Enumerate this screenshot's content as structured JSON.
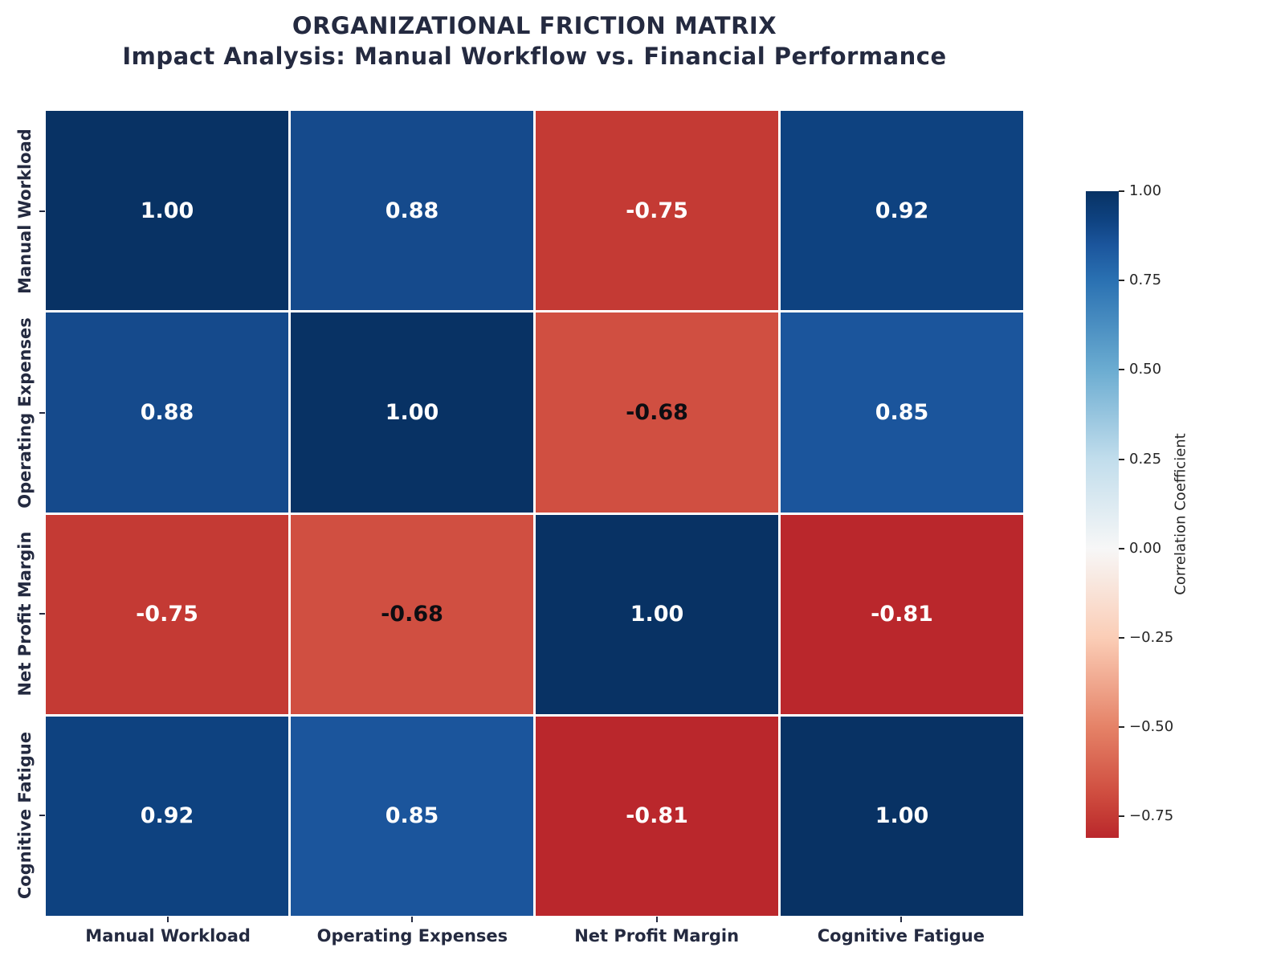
{
  "chart_data": {
    "type": "heatmap",
    "title": "ORGANIZATIONAL FRICTION MATRIX",
    "subtitle": "Impact Analysis: Manual Workflow vs. Financial Performance",
    "categories": [
      "Manual Workload",
      "Operating Expenses",
      "Net Profit Margin",
      "Cognitive Fatigue"
    ],
    "matrix": [
      [
        1.0,
        0.88,
        -0.75,
        0.92
      ],
      [
        0.88,
        1.0,
        -0.68,
        0.85
      ],
      [
        -0.75,
        -0.68,
        1.0,
        -0.81
      ],
      [
        0.92,
        0.85,
        -0.81,
        1.0
      ]
    ],
    "colormap": "RdBu",
    "vmin": -0.81,
    "vmax": 1.0,
    "center": 0,
    "annotation_format": "two-decimal",
    "grid_line_color": "#ffffff",
    "cell_colors": {
      "1.00": "#083264",
      "0.92": "#0e4280",
      "0.88": "#154a8c",
      "0.85": "#1b559c",
      "-0.68": "#d04f41",
      "-0.75": "#c43a34",
      "-0.81": "#ba272c"
    },
    "dark_text_values": [
      "-0.68"
    ],
    "dark_text_color": "#0d0d12",
    "light_text_color": "#ffffff",
    "axis_label_color": "#242a40",
    "colorbar": {
      "label": "Correlation Coefficient",
      "tick_label_color": "#262626",
      "ticks": [
        {
          "label": "1.00",
          "value": 1.0
        },
        {
          "label": "0.75",
          "value": 0.75
        },
        {
          "label": "0.50",
          "value": 0.5
        },
        {
          "label": "0.25",
          "value": 0.25
        },
        {
          "label": "0.00",
          "value": 0.0
        },
        {
          "label": "−0.25",
          "value": -0.25
        },
        {
          "label": "−0.50",
          "value": -0.5
        },
        {
          "label": "−0.75",
          "value": -0.75
        }
      ],
      "gradient_stops": [
        {
          "p": 0,
          "c": "#ba272c"
        },
        {
          "p": 3.3,
          "c": "#c43a34"
        },
        {
          "p": 7.2,
          "c": "#d04f41"
        },
        {
          "p": 17.1,
          "c": "#e58267"
        },
        {
          "p": 30.9,
          "c": "#fbcdb6"
        },
        {
          "p": 44.7,
          "c": "#f7f7f7"
        },
        {
          "p": 58.6,
          "c": "#c1ddec"
        },
        {
          "p": 72.4,
          "c": "#6bacd1"
        },
        {
          "p": 86.2,
          "c": "#2a71b2"
        },
        {
          "p": 91.7,
          "c": "#1b559c"
        },
        {
          "p": 95.6,
          "c": "#0e4280"
        },
        {
          "p": 100,
          "c": "#083264"
        }
      ]
    }
  }
}
